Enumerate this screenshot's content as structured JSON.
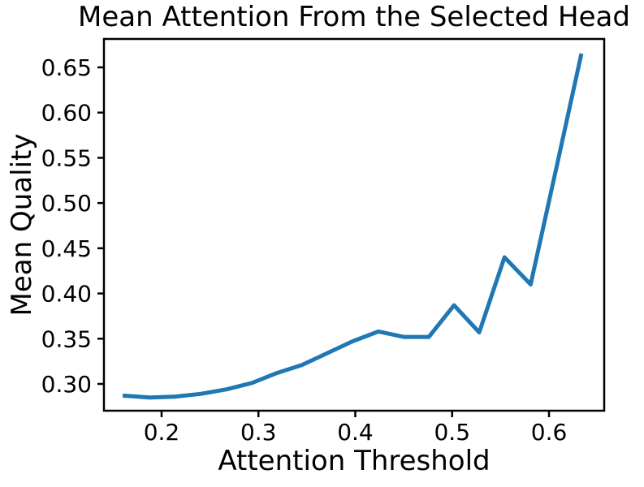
{
  "chart_data": {
    "type": "line",
    "title": "Mean Attention From the Selected Head",
    "xlabel": "Attention Threshold",
    "ylabel": "Mean Quality",
    "x": [
      0.162,
      0.188,
      0.214,
      0.24,
      0.267,
      0.293,
      0.319,
      0.345,
      0.371,
      0.397,
      0.424,
      0.45,
      0.476,
      0.502,
      0.528,
      0.554,
      0.581,
      0.607,
      0.633
    ],
    "series": [
      {
        "name": "Mean Quality",
        "values": [
          0.287,
          0.285,
          0.286,
          0.289,
          0.294,
          0.301,
          0.312,
          0.321,
          0.334,
          0.347,
          0.358,
          0.352,
          0.352,
          0.387,
          0.357,
          0.44,
          0.41,
          0.536,
          0.663
        ],
        "color": "#1f77b4"
      }
    ],
    "xticks": {
      "values": [
        0.2,
        0.3,
        0.4,
        0.5,
        0.6
      ],
      "labels": [
        "0.2",
        "0.3",
        "0.4",
        "0.5",
        "0.6"
      ]
    },
    "yticks": {
      "values": [
        0.3,
        0.35,
        0.4,
        0.45,
        0.5,
        0.55,
        0.6,
        0.65
      ],
      "labels": [
        "0.30",
        "0.35",
        "0.40",
        "0.45",
        "0.50",
        "0.55",
        "0.60",
        "0.65"
      ]
    },
    "xlim": [
      0.1405,
      0.657
    ],
    "ylim": [
      0.2704,
      0.6814
    ],
    "grid": false,
    "legend": null,
    "background": "#ffffff",
    "text_color": "#000000",
    "spine_color": "#000000"
  }
}
